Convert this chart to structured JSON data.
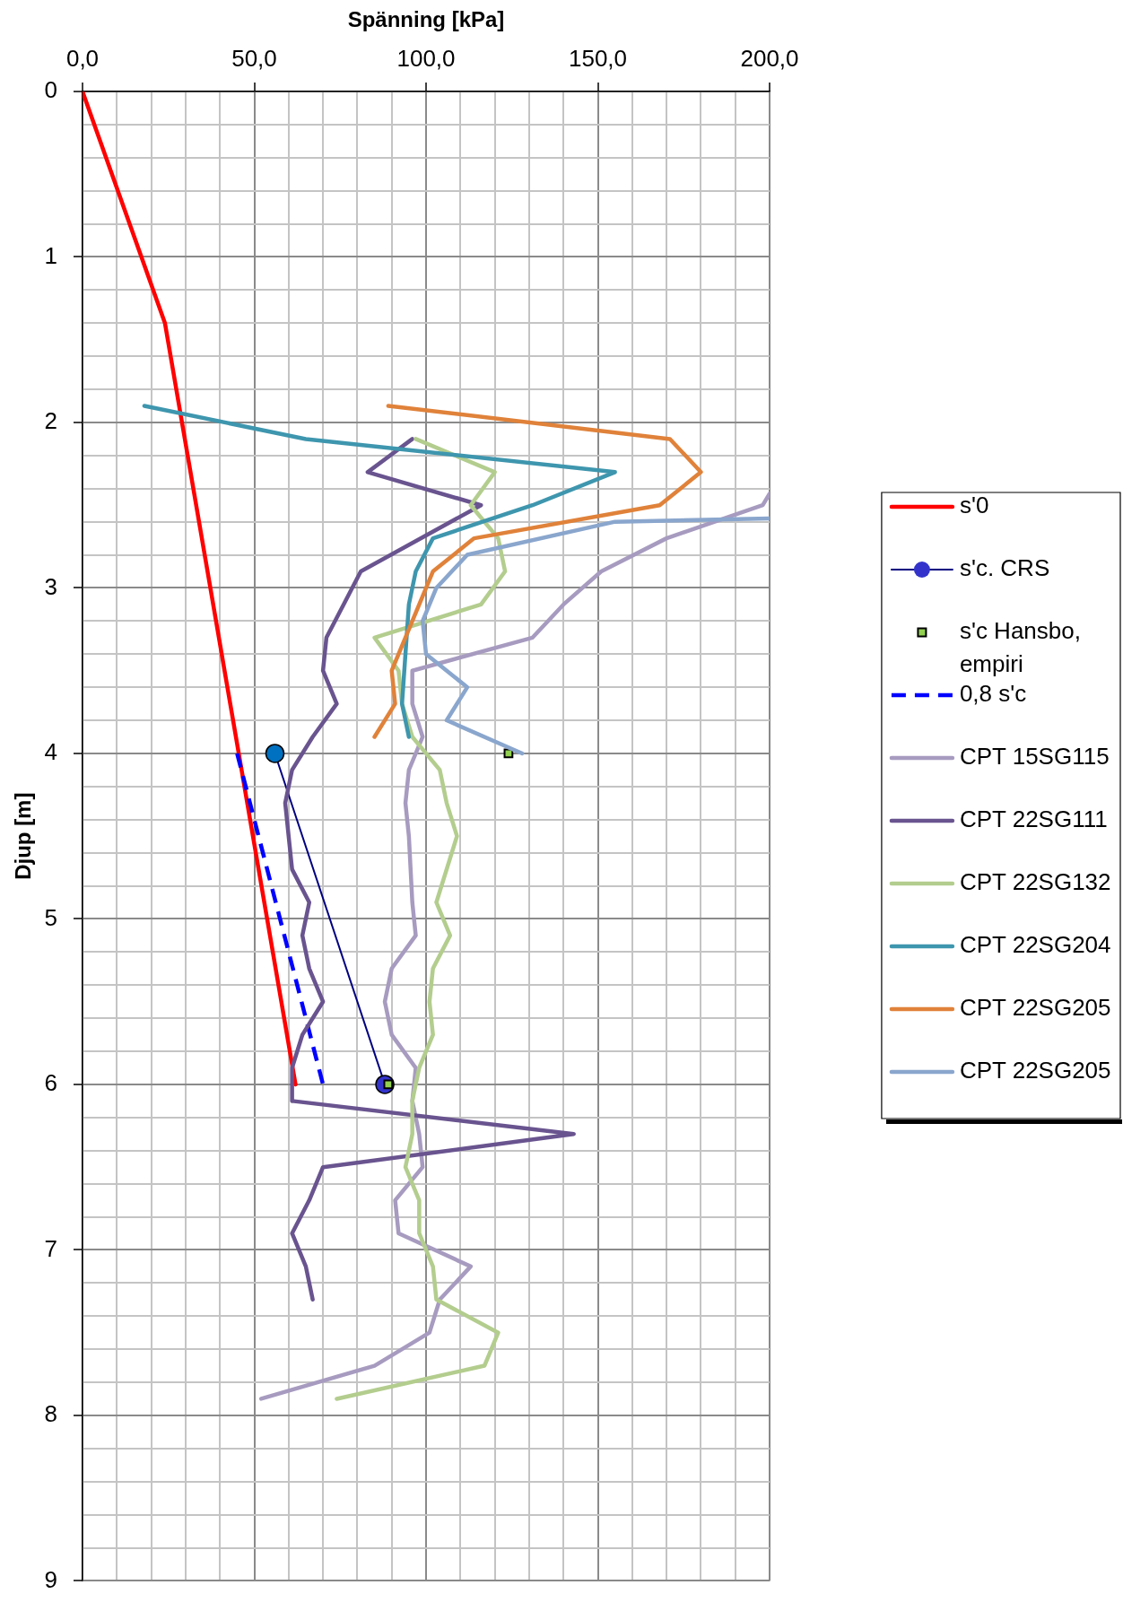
{
  "chart_data": {
    "type": "line",
    "xlabel": "Spänning [kPa]",
    "ylabel": "Djup [m]",
    "xlim": [
      0,
      200
    ],
    "xticks": [
      {
        "value": 0,
        "label": "0,0"
      },
      {
        "value": 10,
        "label": null
      },
      {
        "value": 20,
        "label": null
      },
      {
        "value": 30,
        "label": null
      },
      {
        "value": 40,
        "label": null
      },
      {
        "value": 50,
        "label": "50,0"
      },
      {
        "value": 60,
        "label": null
      },
      {
        "value": 70,
        "label": null
      },
      {
        "value": 80,
        "label": null
      },
      {
        "value": 90,
        "label": null
      },
      {
        "value": 100,
        "label": "100,0"
      },
      {
        "value": 110,
        "label": null
      },
      {
        "value": 120,
        "label": null
      },
      {
        "value": 130,
        "label": null
      },
      {
        "value": 140,
        "label": null
      },
      {
        "value": 150,
        "label": "150,0"
      },
      {
        "value": 160,
        "label": null
      },
      {
        "value": 170,
        "label": null
      },
      {
        "value": 180,
        "label": null
      },
      {
        "value": 190,
        "label": null
      },
      {
        "value": 200,
        "label": "200,0"
      }
    ],
    "ylim": [
      9,
      0
    ],
    "yticks": [
      0,
      {
        "value": 0.2,
        "label": null
      },
      {
        "value": 0.4,
        "label": null
      },
      {
        "value": 0.6,
        "label": null
      },
      {
        "value": 0.8,
        "label": null
      },
      1,
      {
        "value": 1.2,
        "label": null
      },
      {
        "value": 1.4,
        "label": null
      },
      {
        "value": 1.6,
        "label": null
      },
      {
        "value": 1.8,
        "label": null
      },
      2,
      {
        "value": 2.2,
        "label": null
      },
      {
        "value": 2.4,
        "label": null
      },
      {
        "value": 2.6,
        "label": null
      },
      {
        "value": 2.8,
        "label": null
      },
      3,
      {
        "value": 3.2,
        "label": null
      },
      {
        "value": 3.4,
        "label": null
      },
      {
        "value": 3.6,
        "label": null
      },
      {
        "value": 3.8,
        "label": null
      },
      4,
      {
        "value": 4.2,
        "label": null
      },
      {
        "value": 4.4,
        "label": null
      },
      {
        "value": 4.6,
        "label": null
      },
      {
        "value": 4.8,
        "label": null
      },
      5,
      {
        "value": 5.2,
        "label": null
      },
      {
        "value": 5.4,
        "label": null
      },
      {
        "value": 5.6,
        "label": null
      },
      {
        "value": 5.8,
        "label": null
      },
      6,
      {
        "value": 6.2,
        "label": null
      },
      {
        "value": 6.4,
        "label": null
      },
      {
        "value": 6.6,
        "label": null
      },
      {
        "value": 6.8,
        "label": null
      },
      7,
      {
        "value": 7.2,
        "label": null
      },
      {
        "value": 7.4,
        "label": null
      },
      {
        "value": 7.6,
        "label": null
      },
      {
        "value": 7.8,
        "label": null
      },
      8,
      {
        "value": 8.2,
        "label": null
      },
      {
        "value": 8.4,
        "label": null
      },
      {
        "value": 8.6,
        "label": null
      },
      {
        "value": 8.8,
        "label": null
      },
      9
    ],
    "grid": true,
    "legend": "right",
    "marker": "none",
    "series": [
      {
        "name": "s'0",
        "color": "#ff0000",
        "x": [
          0,
          24,
          62
        ],
        "values": [
          0,
          1.4,
          6.0
        ]
      },
      {
        "name": "s'c. CRS",
        "color": "#000080",
        "colors": [
          "#0070c0",
          "#3333cc"
        ],
        "marker": "circle",
        "x": [
          56,
          88
        ],
        "values": [
          4.0,
          6.0
        ]
      },
      {
        "name": "s'c Hansbo, empiri",
        "type": "scatter",
        "color": "#92d050",
        "marker": "square",
        "x": [
          124,
          89
        ],
        "values": [
          4.0,
          6.0
        ]
      },
      {
        "name": "0,8 s'c",
        "color": "#0000ff",
        "line_style": "dashed",
        "x": [
          45,
          70
        ],
        "values": [
          4.0,
          6.0
        ]
      },
      {
        "name": "CPT 15SG115",
        "color": "#a79bc0",
        "x": [
          200,
          198,
          170,
          151,
          140,
          131,
          96,
          96,
          99,
          95,
          94,
          95,
          96,
          97,
          90,
          88,
          90,
          97,
          96,
          98,
          99,
          91,
          92,
          113,
          104,
          101,
          85,
          52
        ],
        "values": [
          2.43,
          2.5,
          2.7,
          2.9,
          3.1,
          3.3,
          3.5,
          3.7,
          3.9,
          4.1,
          4.3,
          4.5,
          4.9,
          5.1,
          5.3,
          5.5,
          5.7,
          5.9,
          6.1,
          6.3,
          6.5,
          6.7,
          6.9,
          7.1,
          7.3,
          7.5,
          7.7,
          7.9
        ]
      },
      {
        "name": "CPT 22SG111",
        "color": "#69548f",
        "x": [
          96,
          83,
          116,
          81,
          76,
          71,
          70,
          74,
          67,
          61,
          59,
          60,
          61,
          66,
          64,
          66,
          70,
          64,
          61,
          61,
          143,
          70,
          66,
          61,
          65,
          67
        ],
        "values": [
          2.1,
          2.3,
          2.5,
          2.9,
          3.1,
          3.3,
          3.5,
          3.7,
          3.9,
          4.1,
          4.3,
          4.5,
          4.7,
          4.9,
          5.1,
          5.3,
          5.5,
          5.7,
          5.9,
          6.1,
          6.3,
          6.5,
          6.7,
          6.9,
          7.1,
          7.3
        ]
      },
      {
        "name": "CPT 22SG132",
        "color": "#b3cd8e",
        "x": [
          97,
          120,
          113,
          121,
          123,
          116,
          85,
          92,
          93,
          96,
          104,
          106,
          109,
          103,
          107,
          102,
          101,
          102,
          98,
          96,
          96,
          94,
          98,
          98,
          102,
          103,
          121,
          117,
          74
        ],
        "values": [
          2.1,
          2.3,
          2.5,
          2.7,
          2.9,
          3.1,
          3.3,
          3.5,
          3.7,
          3.9,
          4.1,
          4.3,
          4.5,
          4.9,
          5.1,
          5.3,
          5.5,
          5.7,
          5.9,
          6.1,
          6.3,
          6.5,
          6.7,
          6.9,
          7.1,
          7.3,
          7.5,
          7.7,
          7.9
        ]
      },
      {
        "name": "CPT 22SG204",
        "color": "#3e96ae",
        "x": [
          18,
          65,
          155,
          131,
          102,
          97,
          95,
          93,
          95
        ],
        "values": [
          1.9,
          2.1,
          2.3,
          2.5,
          2.7,
          2.9,
          3.1,
          3.7,
          3.9
        ]
      },
      {
        "name": "CPT 22SG205",
        "color": "#e0823a",
        "x": [
          89,
          171,
          180,
          168,
          114,
          102,
          90,
          91,
          85
        ],
        "values": [
          1.9,
          2.1,
          2.3,
          2.5,
          2.7,
          2.9,
          3.5,
          3.7,
          3.9
        ]
      },
      {
        "name": "CPT 22SG205",
        "color": "#8aa6cd",
        "x": [
          200,
          155,
          112,
          103,
          99,
          100,
          112,
          106,
          128
        ],
        "values": [
          2.58,
          2.6,
          2.8,
          3.0,
          3.2,
          3.4,
          3.6,
          3.8,
          4.0
        ]
      }
    ]
  }
}
